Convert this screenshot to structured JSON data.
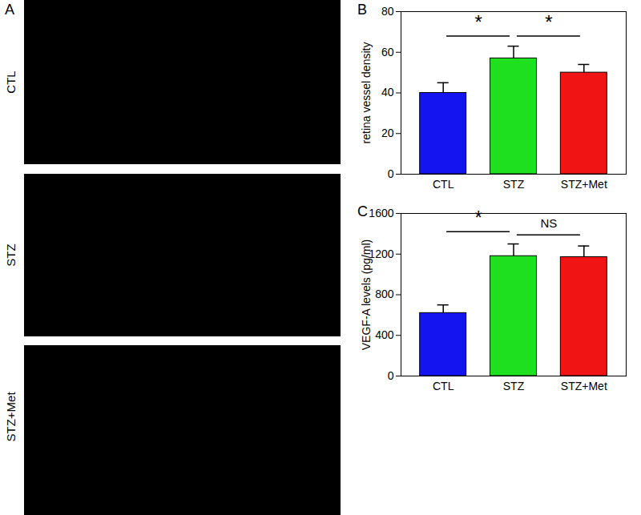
{
  "images": {
    "panel_label": "A",
    "rows": [
      "CTL",
      "STZ",
      "STZ+Met"
    ]
  },
  "chart_data": [
    {
      "type": "bar",
      "panel_label": "B",
      "categories": [
        "CTL",
        "STZ",
        "STZ+Met"
      ],
      "values": [
        40,
        57,
        50
      ],
      "errors": [
        5,
        6,
        4
      ],
      "colors": [
        "#1414f0",
        "#1ee01e",
        "#f01414"
      ],
      "ylabel": "retina vessel density",
      "ylim": [
        0,
        80
      ],
      "yticks": [
        0,
        20,
        40,
        60,
        80
      ],
      "annotations": [
        {
          "text": "*",
          "from": "CTL",
          "to": "STZ",
          "y": 68
        },
        {
          "text": "*",
          "from": "STZ",
          "to": "STZ+Met",
          "y": 68
        }
      ]
    },
    {
      "type": "bar",
      "panel_label": "C",
      "categories": [
        "CTL",
        "STZ",
        "STZ+Met"
      ],
      "values": [
        620,
        1180,
        1170
      ],
      "errors": [
        80,
        120,
        110
      ],
      "colors": [
        "#1414f0",
        "#1ee01e",
        "#f01414"
      ],
      "ylabel": "VEGF-A levels (pg/ml)",
      "ylim": [
        0,
        1600
      ],
      "yticks": [
        0,
        400,
        800,
        1200,
        1600
      ],
      "annotations": [
        {
          "text": "*",
          "from": "CTL",
          "to": "STZ",
          "y": 1420
        },
        {
          "text": "NS",
          "from": "STZ",
          "to": "STZ+Met",
          "y": 1390
        }
      ]
    }
  ]
}
